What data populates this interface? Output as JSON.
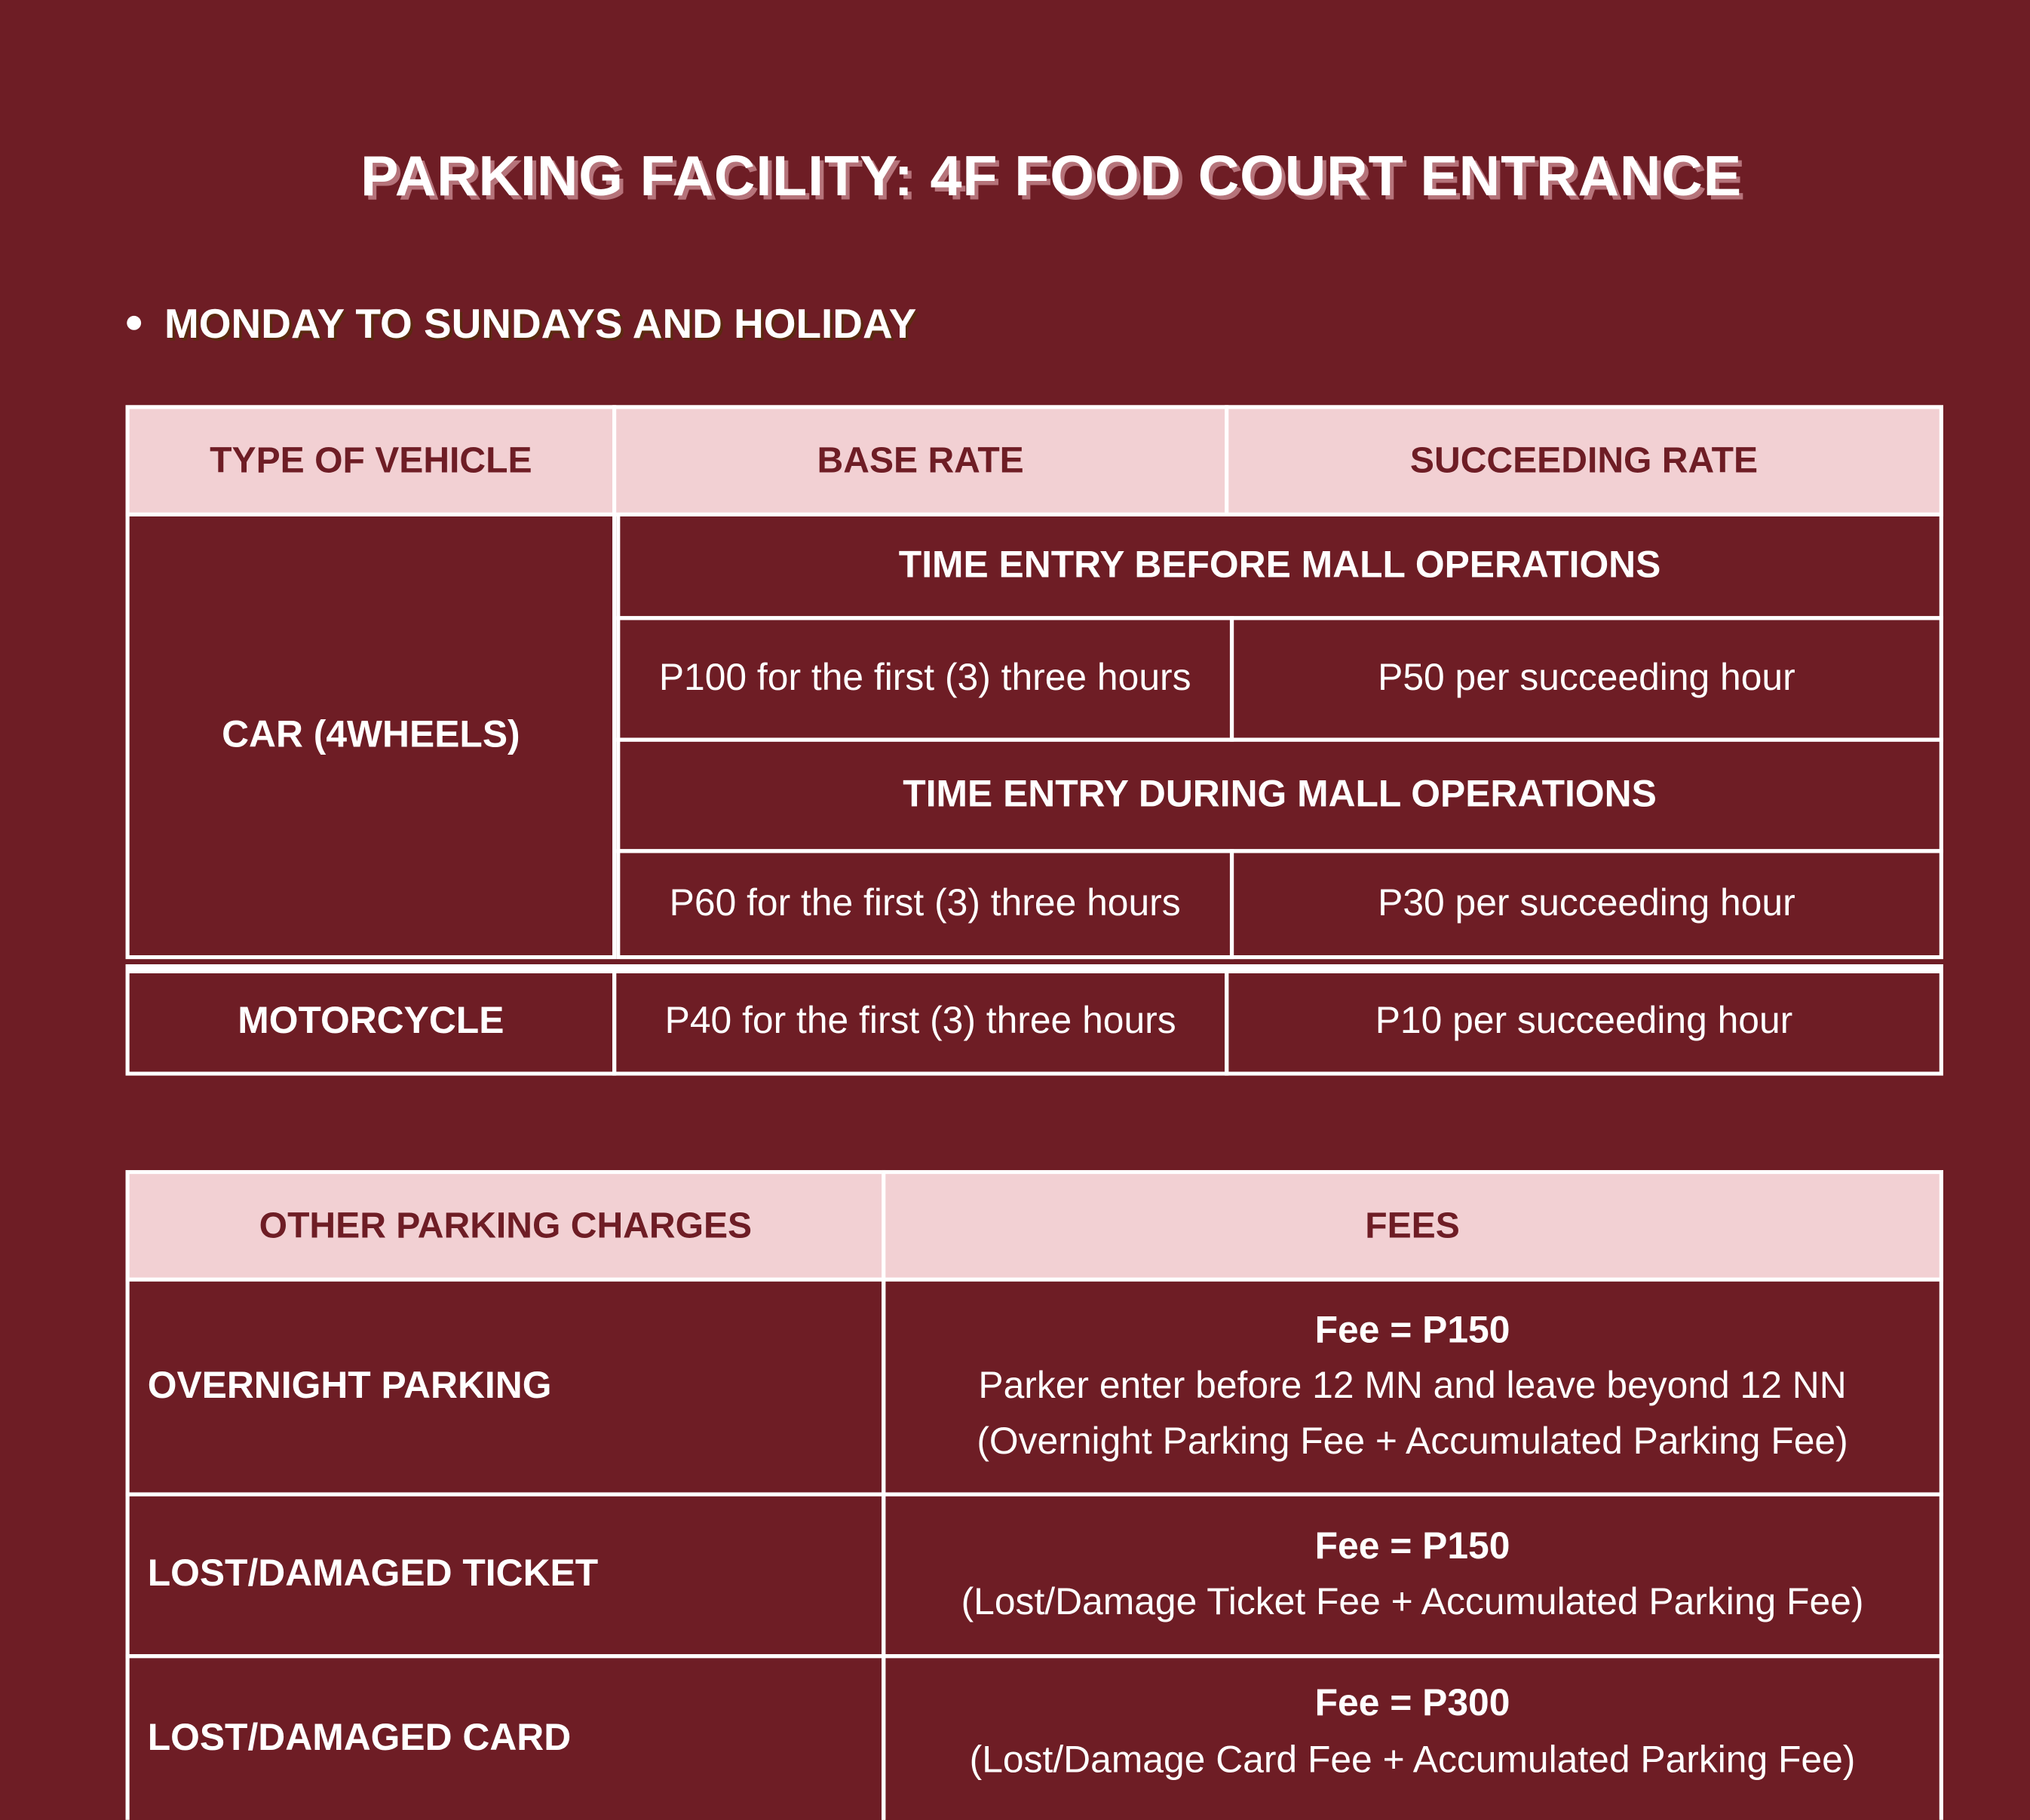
{
  "title": "PARKING FACILITY: 4F FOOD COURT ENTRANCE",
  "schedule": "MONDAY TO SUNDAYS AND HOLIDAY",
  "rates_table": {
    "headers": [
      "TYPE OF VEHICLE",
      "BASE RATE",
      "SUCCEEDING RATE"
    ],
    "car": {
      "type": "CAR (4WHEELS)",
      "before_label": "TIME ENTRY BEFORE MALL OPERATIONS",
      "before_base": "P100 for the first (3) three hours",
      "before_succeeding": "P50 per succeeding hour",
      "during_label": "TIME ENTRY DURING MALL OPERATIONS",
      "during_base": "P60 for the first (3) three hours",
      "during_succeeding": "P30 per succeeding hour"
    },
    "motorcycle": {
      "type": "MOTORCYCLE",
      "base": "P40 for the first (3) three hours",
      "succeeding": "P10 per succeeding hour"
    }
  },
  "charges_table": {
    "headers": [
      "OTHER PARKING CHARGES",
      "FEES"
    ],
    "rows": [
      {
        "charge": "OVERNIGHT PARKING",
        "fee": "Fee = P150",
        "lines": [
          "Parker enter before 12 MN and leave beyond 12 NN",
          "(Overnight Parking Fee + Accumulated Parking Fee)"
        ]
      },
      {
        "charge": "LOST/DAMAGED TICKET",
        "fee": "Fee = P150",
        "lines": [
          "(Lost/Damage Ticket Fee + Accumulated Parking Fee)"
        ]
      },
      {
        "charge": "LOST/DAMAGED CARD",
        "fee": "Fee = P300",
        "lines": [
          "(Lost/Damage Card Fee + Accumulated Parking Fee)"
        ]
      }
    ]
  },
  "colors": {
    "background": "#6e1d25",
    "header_fill": "#f2d0d3",
    "border": "#ffffff"
  }
}
